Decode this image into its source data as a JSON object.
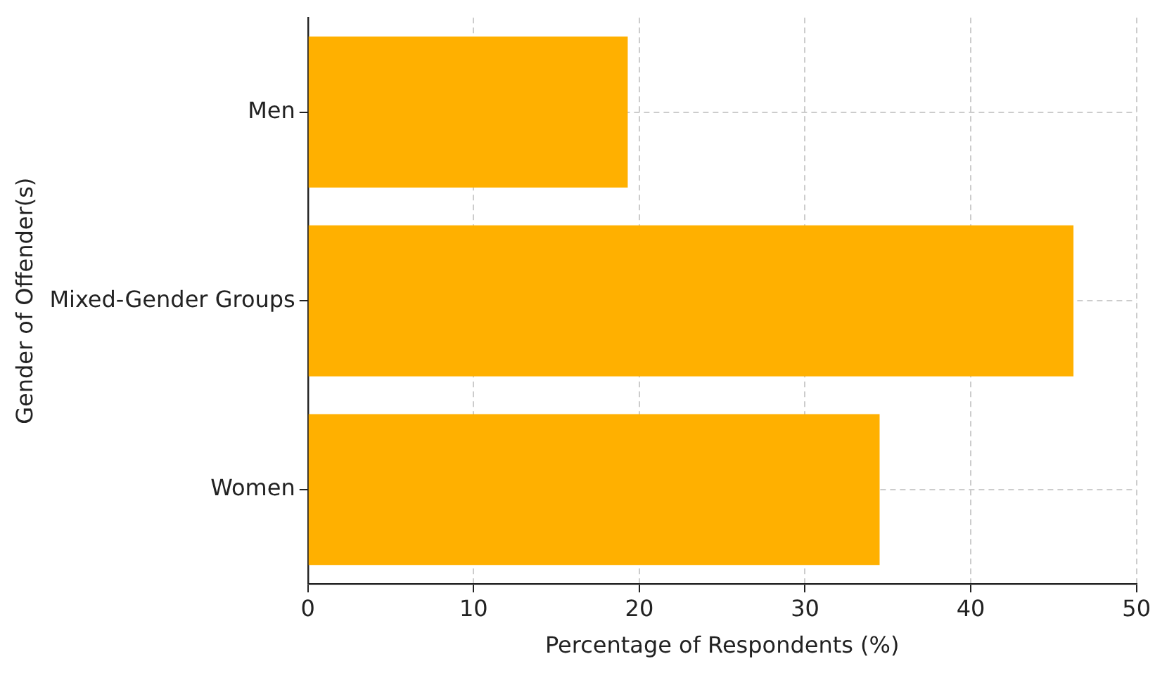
{
  "chart_data": {
    "type": "bar",
    "orientation": "horizontal",
    "xlabel": "Percentage of Respondents (%)",
    "ylabel": "Gender of Offender(s)",
    "categories": [
      "Men",
      "Mixed-Gender Groups",
      "Women"
    ],
    "values": [
      19.3,
      46.2,
      34.5
    ],
    "color": "#ffb000",
    "xlim": [
      0,
      50
    ],
    "xticks": [
      0,
      10,
      20,
      30,
      40,
      50
    ],
    "grid": true
  }
}
